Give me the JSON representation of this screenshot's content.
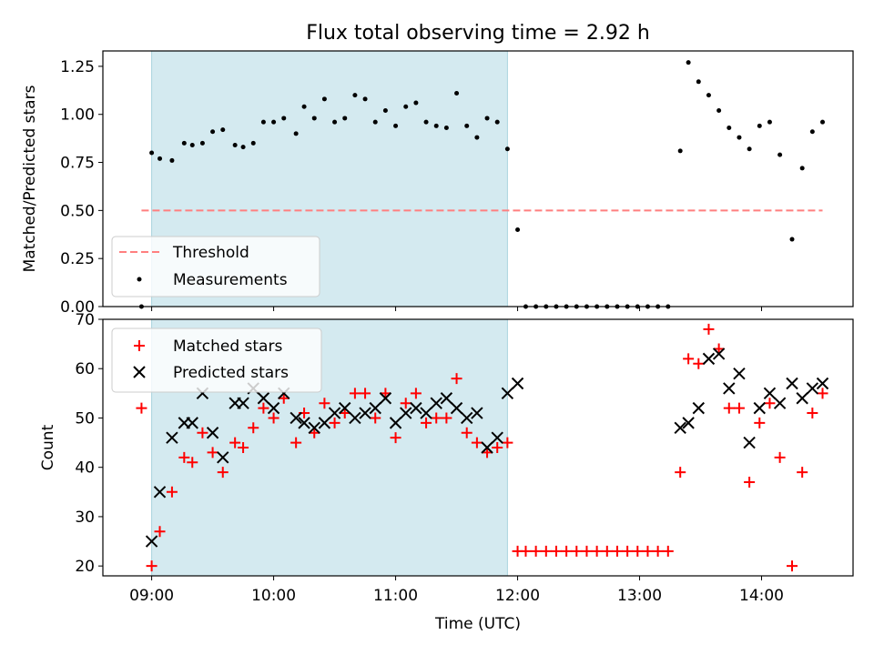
{
  "chart_data": [
    {
      "type": "scatter",
      "title": "Flux total observing time = 2.92 h",
      "xlabel": "",
      "ylabel": "Matched/Predicted stars",
      "xlim": [
        "08:36",
        "14:45"
      ],
      "ylim": [
        0,
        1.33
      ],
      "xticks": [
        "09:00",
        "10:00",
        "11:00",
        "12:00",
        "13:00",
        "14:00"
      ],
      "yticks": [
        "0.00",
        "0.25",
        "0.50",
        "0.75",
        "1.00",
        "1.25"
      ],
      "highlight_span": {
        "x": [
          "09:00",
          "11:55"
        ],
        "color": "#d4eaf0"
      },
      "threshold": {
        "name": "Threshold",
        "y": 0.5,
        "x": [
          "08:55",
          "14:30"
        ],
        "color": "#ff7f7f",
        "style": "dashed"
      },
      "legend": {
        "placement": "lower-left",
        "entries": [
          "Threshold",
          "Measurements"
        ]
      },
      "series": [
        {
          "name": "Measurements",
          "marker": "dot",
          "color": "#000000",
          "x": [
            "08:55",
            "09:00",
            "09:04",
            "09:10",
            "09:16",
            "09:20",
            "09:25",
            "09:30",
            "09:35",
            "09:41",
            "09:45",
            "09:50",
            "09:55",
            "10:00",
            "10:05",
            "10:11",
            "10:15",
            "10:20",
            "10:25",
            "10:30",
            "10:35",
            "10:40",
            "10:45",
            "10:50",
            "10:55",
            "11:00",
            "11:05",
            "11:10",
            "11:15",
            "11:20",
            "11:25",
            "11:30",
            "11:35",
            "11:40",
            "11:45",
            "11:50",
            "11:55",
            "12:00",
            "12:04",
            "12:09",
            "12:14",
            "12:19",
            "12:24",
            "12:29",
            "12:34",
            "12:39",
            "12:44",
            "12:49",
            "12:54",
            "12:59",
            "13:04",
            "13:09",
            "13:14",
            "13:20",
            "13:24",
            "13:29",
            "13:34",
            "13:39",
            "13:44",
            "13:49",
            "13:54",
            "13:59",
            "14:04",
            "14:09",
            "14:15",
            "14:20",
            "14:25",
            "14:30"
          ],
          "y": [
            0.0,
            0.8,
            0.77,
            0.76,
            0.85,
            0.84,
            0.85,
            0.91,
            0.92,
            0.84,
            0.83,
            0.85,
            0.96,
            0.96,
            0.98,
            0.9,
            1.04,
            0.98,
            1.08,
            0.96,
            0.98,
            1.1,
            1.08,
            0.96,
            1.02,
            0.94,
            1.04,
            1.06,
            0.96,
            0.94,
            0.93,
            1.11,
            0.94,
            0.88,
            0.98,
            0.96,
            0.82,
            0.4,
            0.0,
            0.0,
            0.0,
            0.0,
            0.0,
            0.0,
            0.0,
            0.0,
            0.0,
            0.0,
            0.0,
            0.0,
            0.0,
            0.0,
            0.0,
            0.81,
            1.27,
            1.17,
            1.1,
            1.02,
            0.93,
            0.88,
            0.82,
            0.94,
            0.96,
            0.79,
            0.35,
            0.72,
            0.91,
            0.96
          ]
        }
      ]
    },
    {
      "type": "scatter",
      "title": "",
      "xlabel": "Time (UTC)",
      "ylabel": "Count",
      "xlim": [
        "08:36",
        "14:45"
      ],
      "ylim": [
        18,
        70
      ],
      "xticks": [
        "09:00",
        "10:00",
        "11:00",
        "12:00",
        "13:00",
        "14:00"
      ],
      "yticks": [
        "20",
        "30",
        "40",
        "50",
        "60",
        "70"
      ],
      "highlight_span": {
        "x": [
          "09:00",
          "11:55"
        ],
        "color": "#d4eaf0"
      },
      "legend": {
        "placement": "upper-left",
        "entries": [
          "Matched stars",
          "Predicted stars"
        ]
      },
      "series": [
        {
          "name": "Matched stars",
          "marker": "plus",
          "color": "#ff0000",
          "x": [
            "08:55",
            "09:00",
            "09:04",
            "09:10",
            "09:16",
            "09:20",
            "09:25",
            "09:30",
            "09:35",
            "09:41",
            "09:45",
            "09:50",
            "09:55",
            "10:00",
            "10:05",
            "10:11",
            "10:15",
            "10:20",
            "10:25",
            "10:30",
            "10:35",
            "10:40",
            "10:45",
            "10:50",
            "10:55",
            "11:00",
            "11:05",
            "11:10",
            "11:15",
            "11:20",
            "11:25",
            "11:30",
            "11:35",
            "11:40",
            "11:45",
            "11:50",
            "11:55",
            "12:00",
            "12:04",
            "12:09",
            "12:14",
            "12:19",
            "12:24",
            "12:29",
            "12:34",
            "12:39",
            "12:44",
            "12:49",
            "12:54",
            "12:59",
            "13:04",
            "13:09",
            "13:14",
            "13:20",
            "13:24",
            "13:29",
            "13:34",
            "13:39",
            "13:44",
            "13:49",
            "13:54",
            "13:59",
            "14:04",
            "14:09",
            "14:15",
            "14:20",
            "14:25",
            "14:30"
          ],
          "y": [
            52,
            20,
            27,
            35,
            42,
            41,
            47,
            43,
            39,
            45,
            44,
            48,
            52,
            50,
            54,
            45,
            51,
            47,
            53,
            49,
            51,
            55,
            55,
            50,
            55,
            46,
            53,
            55,
            49,
            50,
            50,
            58,
            47,
            45,
            43,
            44,
            45,
            23,
            23,
            23,
            23,
            23,
            23,
            23,
            23,
            23,
            23,
            23,
            23,
            23,
            23,
            23,
            23,
            39,
            62,
            61,
            68,
            64,
            52,
            52,
            37,
            49,
            53,
            42,
            20,
            39,
            51,
            55
          ]
        },
        {
          "name": "Predicted stars",
          "marker": "x",
          "color": "#000000",
          "x": [
            "09:00",
            "09:04",
            "09:10",
            "09:16",
            "09:20",
            "09:25",
            "09:30",
            "09:35",
            "09:41",
            "09:45",
            "09:50",
            "09:55",
            "10:00",
            "10:05",
            "10:11",
            "10:15",
            "10:20",
            "10:25",
            "10:30",
            "10:35",
            "10:40",
            "10:45",
            "10:50",
            "10:55",
            "11:00",
            "11:05",
            "11:10",
            "11:15",
            "11:20",
            "11:25",
            "11:30",
            "11:35",
            "11:40",
            "11:45",
            "11:50",
            "11:55",
            "12:00",
            "13:20",
            "13:24",
            "13:29",
            "13:34",
            "13:39",
            "13:44",
            "13:49",
            "13:54",
            "13:59",
            "14:04",
            "14:09",
            "14:15",
            "14:20",
            "14:25",
            "14:30"
          ],
          "y": [
            25,
            35,
            46,
            49,
            49,
            55,
            47,
            42,
            53,
            53,
            56,
            54,
            52,
            55,
            50,
            49,
            48,
            49,
            51,
            52,
            50,
            51,
            52,
            54,
            49,
            51,
            52,
            51,
            53,
            54,
            52,
            50,
            51,
            44,
            46,
            55,
            57,
            48,
            49,
            52,
            62,
            63,
            56,
            59,
            45,
            52,
            55,
            53,
            57,
            54,
            56,
            57
          ]
        }
      ]
    }
  ]
}
